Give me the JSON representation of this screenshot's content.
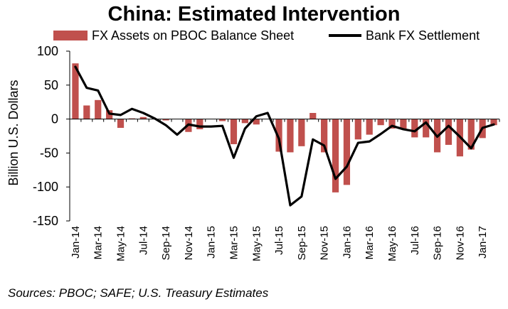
{
  "chart_data": {
    "type": "bar",
    "title": "China: Estimated Intervention",
    "ylabel": "Billion U.S. Dollars",
    "ylim": [
      -150,
      100
    ],
    "yticks": [
      100,
      50,
      0,
      -50,
      -100,
      -150
    ],
    "grid": false,
    "legend_position": "top",
    "x": [
      "Jan-14",
      "Feb-14",
      "Mar-14",
      "Apr-14",
      "May-14",
      "Jun-14",
      "Jul-14",
      "Aug-14",
      "Sep-14",
      "Oct-14",
      "Nov-14",
      "Dec-14",
      "Jan-15",
      "Feb-15",
      "Mar-15",
      "Apr-15",
      "May-15",
      "Jun-15",
      "Jul-15",
      "Aug-15",
      "Sep-15",
      "Oct-15",
      "Nov-15",
      "Dec-15",
      "Jan-16",
      "Feb-16",
      "Mar-16",
      "Apr-16",
      "May-16",
      "Jun-16",
      "Jul-16",
      "Aug-16",
      "Sep-16",
      "Oct-16",
      "Nov-16",
      "Dec-16",
      "Jan-17",
      "Feb-17"
    ],
    "xtick_labels": [
      "Jan-14",
      "Mar-14",
      "May-14",
      "Jul-14",
      "Sep-14",
      "Nov-14",
      "Jan-15",
      "Mar-15",
      "May-15",
      "Jul-15",
      "Sep-15",
      "Nov-15",
      "Jan-16",
      "Mar-16",
      "May-16",
      "Jul-16",
      "Sep-16",
      "Nov-16",
      "Jan-17"
    ],
    "series": [
      {
        "name": "FX Assets on PBOC Balance Sheet",
        "type": "bar",
        "color": "#c0504d",
        "values": [
          82,
          20,
          28,
          13,
          -13,
          1,
          3,
          0,
          -2,
          0,
          -19,
          -15,
          0,
          -3,
          -37,
          -6,
          -8,
          0,
          -48,
          -49,
          -40,
          9,
          -49,
          -108,
          -97,
          -30,
          -23,
          -9,
          -14,
          -14,
          -27,
          -27,
          -49,
          -38,
          -55,
          -45,
          -28,
          -9
        ]
      },
      {
        "name": "Bank FX Settlement",
        "type": "line",
        "color": "#000000",
        "values": [
          77,
          46,
          42,
          8,
          6,
          15,
          9,
          1,
          -9,
          -23,
          -8,
          -11,
          -11,
          -10,
          -57,
          -14,
          4,
          9,
          -29,
          -127,
          -114,
          -30,
          -39,
          -88,
          -70,
          -35,
          -33,
          -22,
          -10,
          -15,
          -18,
          -5,
          -26,
          -10,
          -26,
          -43,
          -13,
          -8
        ]
      }
    ]
  },
  "legend": {
    "bar_label": "FX Assets on PBOC Balance Sheet",
    "line_label": "Bank FX Settlement"
  },
  "source_note": "Sources: PBOC; SAFE; U.S. Treasury Estimates"
}
